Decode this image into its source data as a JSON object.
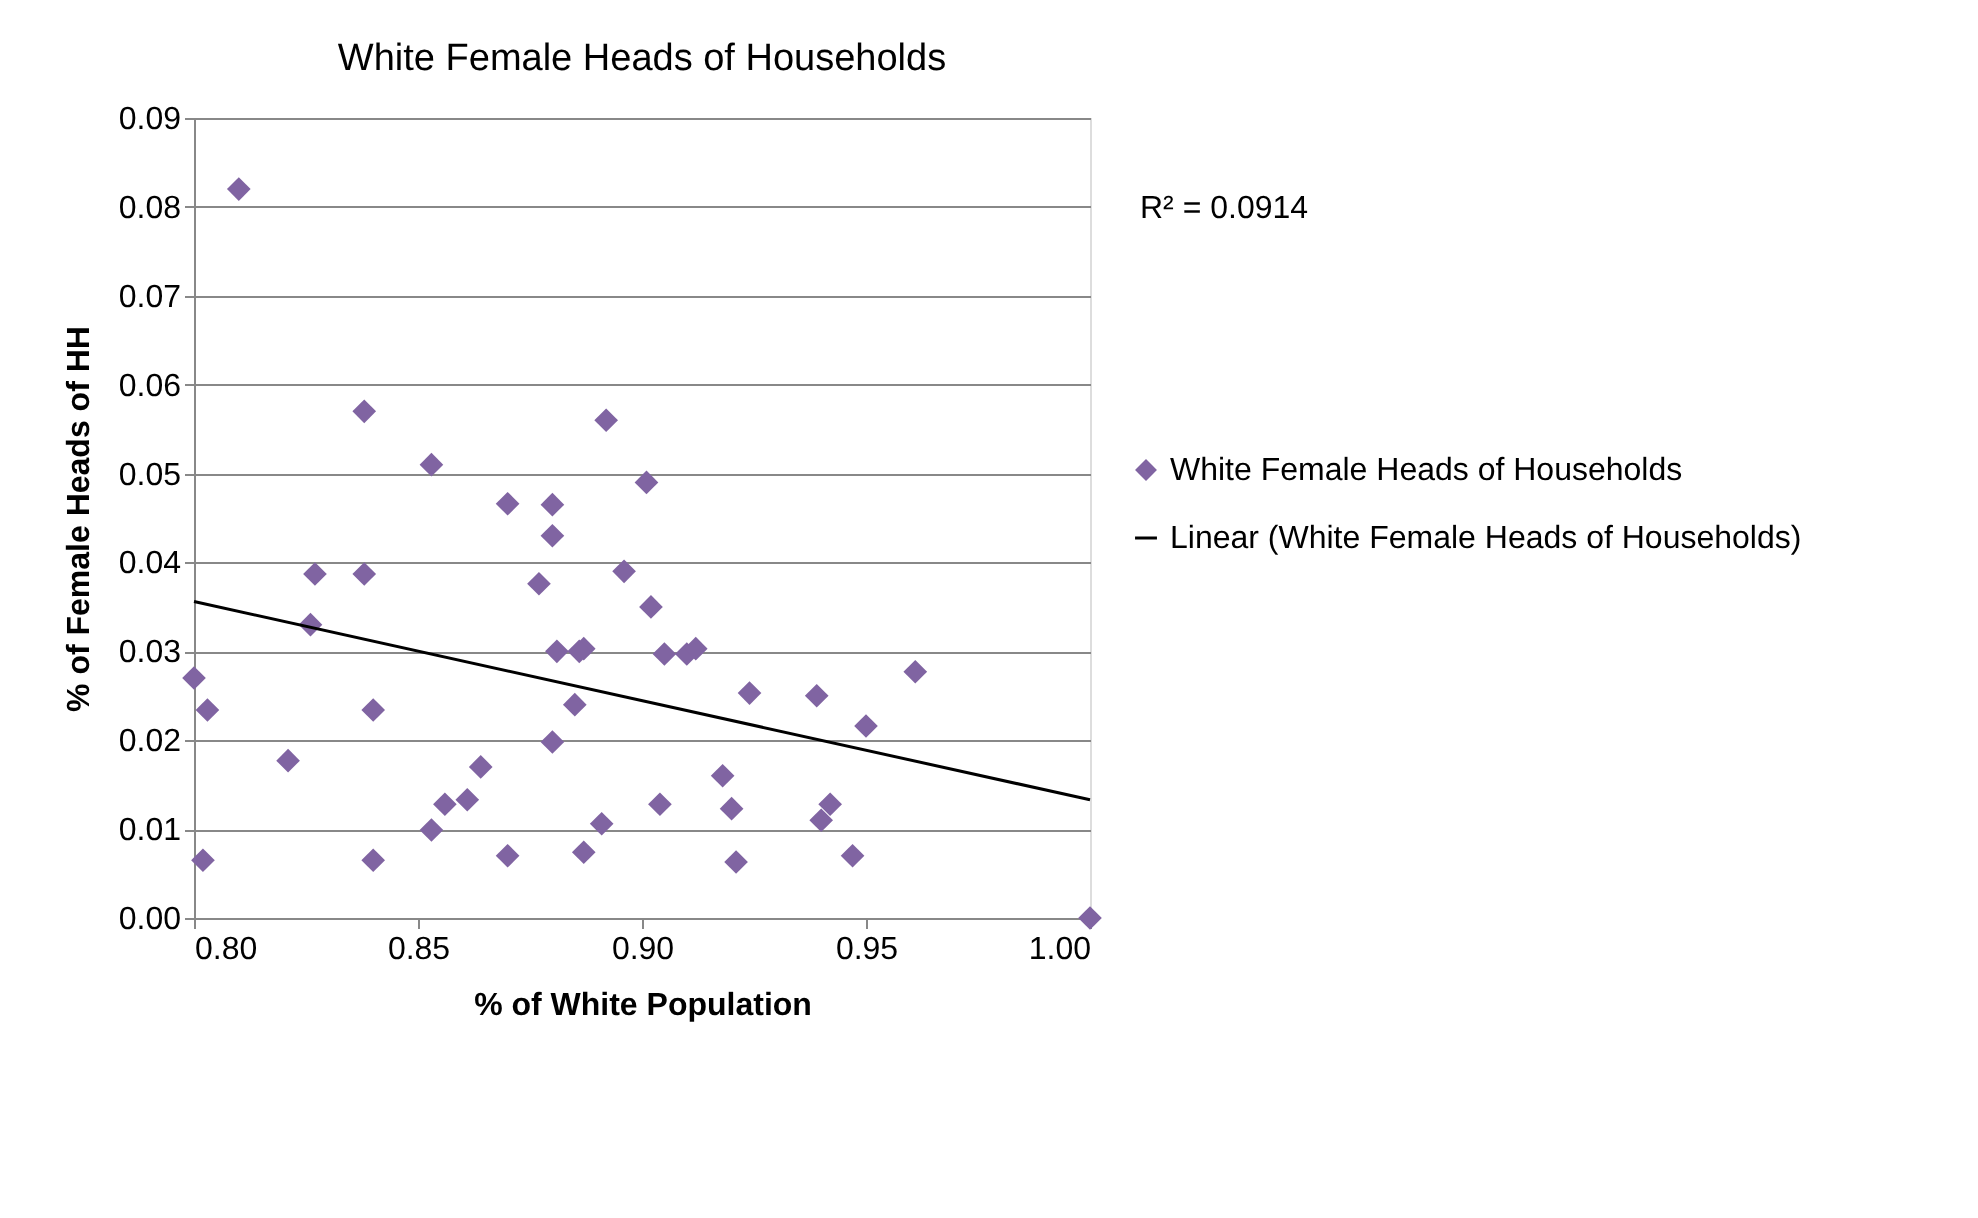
{
  "chart_data": {
    "type": "scatter",
    "title": "White Female Heads of Households",
    "xlabel": "% of White Population",
    "ylabel": "% of Female Heads of HH",
    "series": [
      {
        "name": "White Female Heads of Households",
        "color": "#8064a2",
        "marker": "diamond",
        "x": [
          0.81,
          0.838,
          0.853,
          0.87,
          0.892,
          0.901,
          0.88,
          0.88,
          0.877,
          0.896,
          0.902,
          0.827,
          0.838,
          0.826,
          0.881,
          0.887,
          0.886,
          0.905,
          0.91,
          0.912,
          0.8,
          0.803,
          0.84,
          0.885,
          0.924,
          0.939,
          0.95,
          0.961,
          0.88,
          0.821,
          0.864,
          0.918,
          0.861,
          0.856,
          0.92,
          0.904,
          0.942,
          0.94,
          0.891,
          0.853,
          0.802,
          0.84,
          0.87,
          0.887,
          0.921,
          0.947,
          1.0
        ],
        "values": [
          0.082,
          0.057,
          0.051,
          0.0466,
          0.056,
          0.049,
          0.043,
          0.0465,
          0.0376,
          0.039,
          0.035,
          0.0387,
          0.0387,
          0.033,
          0.03,
          0.0303,
          0.03,
          0.0297,
          0.0297,
          0.0303,
          0.027,
          0.0234,
          0.0234,
          0.024,
          0.0253,
          0.025,
          0.0216,
          0.0277,
          0.0198,
          0.0177,
          0.017,
          0.016,
          0.0133,
          0.0128,
          0.0123,
          0.0128,
          0.0128,
          0.011,
          0.0106,
          0.0099,
          0.0065,
          0.0065,
          0.007,
          0.0074,
          0.0063,
          0.007,
          0.0
        ]
      },
      {
        "name": "Linear (White Female Heads of Households)",
        "color": "#000000",
        "type": "line",
        "marker": "none",
        "line_style": "solid",
        "x": [
          0.8,
          1.0
        ],
        "values": [
          0.0356,
          0.0133
        ]
      }
    ],
    "xlim": [
      0.8,
      1.0
    ],
    "ylim": [
      0.0,
      0.09
    ],
    "xticks": [
      {
        "value": 0.8,
        "label": "0.80"
      },
      {
        "value": 0.85,
        "label": "0.85"
      },
      {
        "value": 0.9,
        "label": "0.90"
      },
      {
        "value": 0.95,
        "label": "0.95"
      },
      {
        "value": 1.0,
        "label": "1.00"
      }
    ],
    "yticks": [
      {
        "value": 0.0,
        "label": "0.00"
      },
      {
        "value": 0.01,
        "label": "0.01"
      },
      {
        "value": 0.02,
        "label": "0.02"
      },
      {
        "value": 0.03,
        "label": "0.03"
      },
      {
        "value": 0.04,
        "label": "0.04"
      },
      {
        "value": 0.05,
        "label": "0.05"
      },
      {
        "value": 0.06,
        "label": "0.06"
      },
      {
        "value": 0.07,
        "label": "0.07"
      },
      {
        "value": 0.08,
        "label": "0.08"
      },
      {
        "value": 0.09,
        "label": "0.09"
      }
    ],
    "annotations": [
      "R² = 0.0914"
    ],
    "grid": "y",
    "legend": "right"
  }
}
